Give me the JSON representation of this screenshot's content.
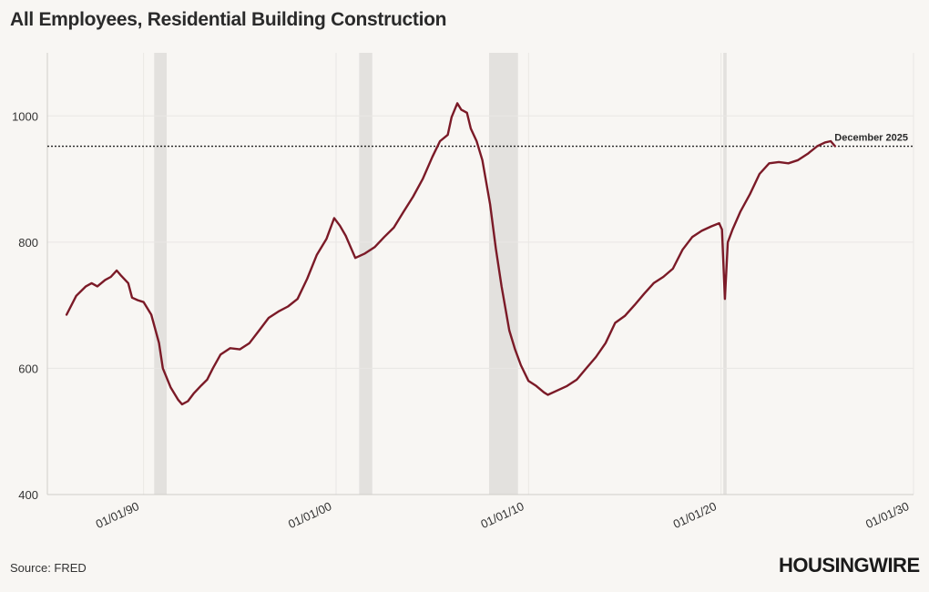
{
  "title": "All Employees, Residential Building Construction",
  "source": "Source: FRED",
  "logo": "HOUSINGWIRE",
  "colors": {
    "line": "#7b1a27",
    "recession": "#e3e1de",
    "grid": "#e9e7e4",
    "reference": "#222222",
    "background": "#f8f6f3"
  },
  "chart_data": {
    "type": "line",
    "title": "All Employees, Residential Building Construction",
    "xlabel": "",
    "ylabel": "",
    "ylim": [
      400,
      1100
    ],
    "xlim": [
      1985.0,
      2030.0
    ],
    "yticks": [
      400,
      600,
      800,
      1000
    ],
    "xticks": [
      {
        "value": 1990,
        "label": "01/01/90"
      },
      {
        "value": 2000,
        "label": "01/01/00"
      },
      {
        "value": 2010,
        "label": "01/01/10"
      },
      {
        "value": 2020,
        "label": "01/01/20"
      },
      {
        "value": 2030,
        "label": "01/01/30"
      }
    ],
    "recessions": [
      [
        1990.55,
        1991.2
      ],
      [
        2001.2,
        2001.88
      ],
      [
        2007.95,
        2009.45
      ],
      [
        2020.12,
        2020.29
      ]
    ],
    "reference_line": {
      "value": 952,
      "label": "December 2025"
    },
    "series": [
      {
        "name": "All Employees, Residential Building Construction",
        "x": [
          1986.0,
          1986.5,
          1987.0,
          1987.3,
          1987.6,
          1988.0,
          1988.3,
          1988.6,
          1988.8,
          1989.2,
          1989.4,
          1989.7,
          1990.0,
          1990.4,
          1990.8,
          1991.0,
          1991.4,
          1991.8,
          1992.0,
          1992.3,
          1992.6,
          1993.0,
          1993.3,
          1993.6,
          1994.0,
          1994.5,
          1995.0,
          1995.5,
          1996.0,
          1996.5,
          1997.0,
          1997.5,
          1998.0,
          1998.5,
          1999.0,
          1999.5,
          1999.9,
          2000.2,
          2000.5,
          2001.0,
          2001.5,
          2002.0,
          2002.5,
          2003.0,
          2003.5,
          2004.0,
          2004.5,
          2005.0,
          2005.4,
          2005.8,
          2006.0,
          2006.3,
          2006.5,
          2006.8,
          2007.0,
          2007.3,
          2007.6,
          2008.0,
          2008.3,
          2008.6,
          2009.0,
          2009.3,
          2009.6,
          2010.0,
          2010.4,
          2010.8,
          2011.0,
          2011.5,
          2012.0,
          2012.5,
          2013.0,
          2013.5,
          2014.0,
          2014.5,
          2015.0,
          2015.5,
          2016.0,
          2016.5,
          2017.0,
          2017.5,
          2018.0,
          2018.5,
          2019.0,
          2019.5,
          2019.9,
          2020.05,
          2020.2,
          2020.35,
          2020.6,
          2021.0,
          2021.5,
          2022.0,
          2022.5,
          2023.0,
          2023.5,
          2024.0,
          2024.5,
          2025.0,
          2025.4,
          2025.7,
          2025.92
        ],
        "values": [
          685,
          715,
          730,
          735,
          730,
          740,
          745,
          755,
          748,
          735,
          712,
          708,
          705,
          685,
          640,
          600,
          570,
          550,
          543,
          548,
          560,
          573,
          582,
          600,
          622,
          632,
          630,
          640,
          660,
          680,
          690,
          698,
          710,
          742,
          780,
          805,
          838,
          826,
          810,
          775,
          782,
          792,
          808,
          823,
          848,
          872,
          900,
          935,
          960,
          970,
          998,
          1020,
          1010,
          1005,
          980,
          960,
          930,
          860,
          790,
          730,
          660,
          630,
          605,
          580,
          572,
          562,
          558,
          565,
          572,
          582,
          600,
          618,
          640,
          672,
          683,
          700,
          718,
          735,
          745,
          758,
          788,
          808,
          818,
          825,
          830,
          820,
          710,
          800,
          820,
          848,
          876,
          908,
          925,
          927,
          925,
          930,
          940,
          952,
          958,
          960,
          952
        ]
      }
    ]
  }
}
